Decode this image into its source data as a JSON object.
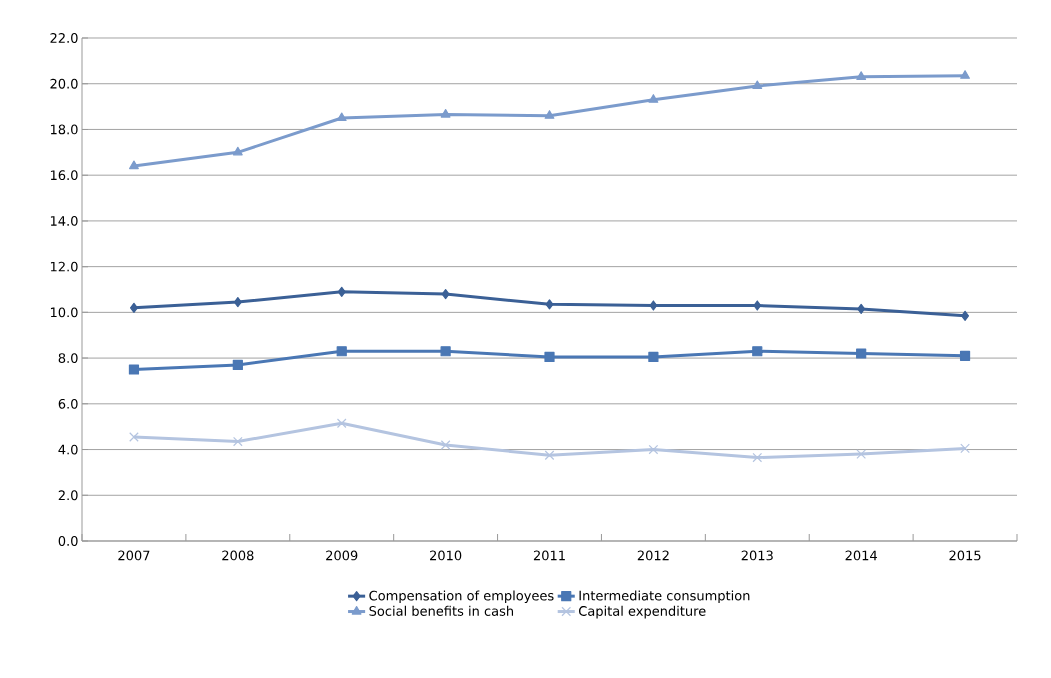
{
  "chart_data": {
    "type": "line",
    "categories": [
      "2007",
      "2008",
      "2009",
      "2010",
      "2011",
      "2012",
      "2013",
      "2014",
      "2015"
    ],
    "series": [
      {
        "name": "Compensation of employees",
        "color": "#3b6096",
        "marker": "diamond",
        "values": [
          10.2,
          10.45,
          10.9,
          10.8,
          10.35,
          10.3,
          10.3,
          10.15,
          9.85
        ]
      },
      {
        "name": "Intermediate consumption",
        "color": "#4a77b4",
        "marker": "square",
        "values": [
          7.5,
          7.7,
          8.3,
          8.3,
          8.05,
          8.05,
          8.3,
          8.2,
          8.1
        ]
      },
      {
        "name": "Social benefits in cash",
        "color": "#7b9bcc",
        "marker": "triangle",
        "values": [
          16.4,
          17.0,
          18.5,
          18.65,
          18.6,
          19.3,
          19.9,
          20.3,
          20.35
        ]
      },
      {
        "name": "Capital expenditure",
        "color": "#b4c4e0",
        "marker": "cross",
        "values": [
          4.55,
          4.35,
          5.15,
          4.2,
          3.75,
          4.0,
          3.65,
          3.8,
          4.05
        ]
      }
    ],
    "ylim": [
      0,
      22
    ],
    "yticks": [
      {
        "value": 0,
        "label": "0.0"
      },
      {
        "value": 2,
        "label": "2.0"
      },
      {
        "value": 4,
        "label": "4.0"
      },
      {
        "value": 6,
        "label": "6.0"
      },
      {
        "value": 8,
        "label": "8.0"
      },
      {
        "value": 10,
        "label": "10.0"
      },
      {
        "value": 12,
        "label": "12.0"
      },
      {
        "value": 14,
        "label": "14.0"
      },
      {
        "value": 16,
        "label": "16.0"
      },
      {
        "value": 18,
        "label": "18.0"
      },
      {
        "value": 20,
        "label": "20.0"
      },
      {
        "value": 22,
        "label": "22.0"
      }
    ],
    "grid": "y",
    "legend": "bottom",
    "line_style": "solid"
  }
}
